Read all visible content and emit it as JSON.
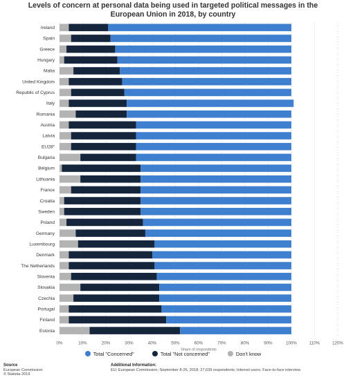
{
  "chart_data": {
    "type": "bar",
    "stacked": true,
    "orientation": "horizontal",
    "title": "Levels of concern at personal data being used in targeted political messages in the European Union in 2018, by country",
    "xlabel": "Share of respondents",
    "xlim": [
      0,
      120
    ],
    "x_ticks": [
      "0%",
      "10%",
      "20%",
      "30%",
      "40%",
      "50%",
      "60%",
      "70%",
      "80%",
      "90%",
      "100%",
      "110%",
      "120%"
    ],
    "grid": true,
    "legend_position": "bottom",
    "categories": [
      "Ireland",
      "Spain",
      "Greece",
      "Hungary",
      "Malta",
      "United Kingdom",
      "Republic of Cyprus",
      "Italy",
      "Romania",
      "Austria",
      "Latvia",
      "EU28*",
      "Bulgaria",
      "Belgium",
      "Lithuania",
      "France",
      "Croatia",
      "Sweden",
      "Poland",
      "Germany",
      "Luxembourg",
      "Denmark",
      "The Netherlands",
      "Slovenia",
      "Slovakia",
      "Czechia",
      "Portugal",
      "Finland",
      "Estonia"
    ],
    "series": [
      {
        "name": "Don't know",
        "color": "#b3b3b3",
        "values": [
          4,
          5,
          3,
          2,
          6,
          4,
          5,
          4,
          7,
          4,
          5,
          5,
          9,
          1,
          9,
          5,
          2,
          2,
          3,
          7,
          8,
          4,
          4,
          5,
          9,
          6,
          4,
          4,
          13
        ]
      },
      {
        "name": "Total \"Not concerned\"",
        "color": "#14253c",
        "values": [
          17,
          17,
          21,
          23,
          20,
          23,
          23,
          25,
          22,
          29,
          28,
          28,
          24,
          34,
          26,
          30,
          33,
          33,
          33,
          30,
          33,
          36,
          37,
          37,
          34,
          37,
          40,
          42,
          39
        ]
      },
      {
        "name": "Total \"Concerned\"",
        "color": "#3f7fd0",
        "values": [
          79,
          78,
          76,
          75,
          74,
          73,
          72,
          72,
          71,
          67,
          67,
          67,
          67,
          65,
          65,
          65,
          65,
          65,
          64,
          63,
          59,
          60,
          59,
          58,
          57,
          57,
          56,
          54,
          48
        ]
      }
    ]
  },
  "legend": [
    {
      "label": "Total \"Concerned\"",
      "color": "#3f7fd0"
    },
    {
      "label": "Total \"Not concerned\"",
      "color": "#14253c"
    },
    {
      "label": "Don't know",
      "color": "#b3b3b3"
    }
  ],
  "footer": {
    "source_heading": "Source",
    "source_lines": [
      "European Commission",
      "© Statista 2019"
    ],
    "info_heading": "Additional Information:",
    "info_text": "EU; European Commission; September 8-26, 2018; 27,639 respondents; Internet users; Face-to-face interview"
  }
}
